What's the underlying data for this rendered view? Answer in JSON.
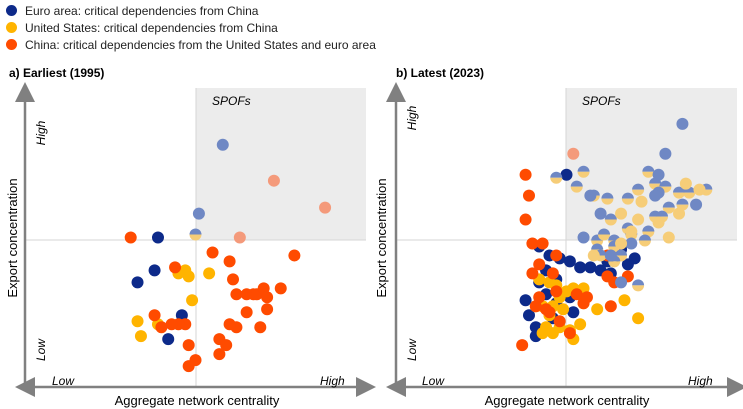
{
  "legend": [
    {
      "label": "Euro area: critical dependencies from China",
      "color": "#0d2a8a"
    },
    {
      "label": "United States: critical dependencies from China",
      "color": "#ffb400"
    },
    {
      "label": "China: critical dependencies from the United States and euro area",
      "color": "#ff4b00"
    }
  ],
  "chart_data": [
    {
      "type": "scatter",
      "title": "a) Earliest (1995)",
      "xlabel": "Aggregate network centrality",
      "ylabel": "Export concentration",
      "x_low_label": "Low",
      "x_high_label": "High",
      "y_low_label": "Low",
      "y_high_label": "High",
      "quadrant_label": "SPOFs",
      "xlim": [
        0,
        100
      ],
      "ylim": [
        0,
        100
      ],
      "threshold": {
        "x": 50,
        "y": 50
      },
      "series": [
        {
          "name": "Euro area: critical dependencies from China",
          "color": "#0d2a8a",
          "points": [
            [
              39,
              50
            ],
            [
              38,
              39
            ],
            [
              33,
              35
            ],
            [
              46,
              24
            ],
            [
              42,
              16
            ]
          ]
        },
        {
          "name": "United States: critical dependencies from China",
          "color": "#ffb400",
          "points": [
            [
              47,
              39
            ],
            [
              48,
              37
            ],
            [
              45,
              38
            ],
            [
              54,
              38
            ],
            [
              49,
              29
            ],
            [
              33,
              22
            ],
            [
              39,
              21
            ],
            [
              34,
              17
            ]
          ]
        },
        {
          "name": "China: critical dependencies from the United States and euro area",
          "color": "#ff4b00",
          "points": [
            [
              31,
              50
            ],
            [
              44,
              40
            ],
            [
              55,
              45
            ],
            [
              60,
              42
            ],
            [
              61,
              36
            ],
            [
              62,
              31
            ],
            [
              65,
              31
            ],
            [
              67,
              31
            ],
            [
              68,
              31
            ],
            [
              70,
              33
            ],
            [
              71,
              30
            ],
            [
              75,
              33
            ],
            [
              79,
              44
            ],
            [
              65,
              25
            ],
            [
              71,
              26
            ],
            [
              69,
              20
            ],
            [
              62,
              20
            ],
            [
              60,
              21
            ],
            [
              57,
              16
            ],
            [
              59,
              14
            ],
            [
              57,
              11
            ],
            [
              48,
              14
            ],
            [
              47,
              21
            ],
            [
              48,
              7
            ],
            [
              50,
              9
            ],
            [
              45,
              21
            ],
            [
              40,
              20
            ],
            [
              38,
              24
            ],
            [
              43,
              21
            ]
          ]
        },
        {
          "name": "Both",
          "split": [
            "#6f88c4",
            "#f6cd78"
          ],
          "points": [
            [
              50,
              51
            ]
          ]
        },
        {
          "name": "Faded Euro area",
          "color": "#6f88c4",
          "points": [
            [
              58,
              81
            ],
            [
              51,
              58
            ]
          ]
        },
        {
          "name": "Faded China",
          "color": "#f49a7b",
          "points": [
            [
              73,
              69
            ],
            [
              88,
              60
            ],
            [
              63,
              50
            ]
          ]
        }
      ]
    },
    {
      "type": "scatter",
      "title": "b) Latest (2023)",
      "xlabel": "Aggregate network centrality",
      "ylabel": "Export concentration",
      "x_low_label": "Low",
      "x_high_label": "High",
      "y_low_label": "Low",
      "y_high_label": "High",
      "quadrant_label": "SPOFs",
      "xlim": [
        0,
        100
      ],
      "ylim": [
        0,
        100
      ],
      "threshold": {
        "x": 50,
        "y": 50
      },
      "series": [
        {
          "name": "Euro area: critical dependencies from China",
          "color": "#0d2a8a",
          "points": [
            [
              50,
              71
            ],
            [
              42,
              47
            ],
            [
              45,
              44
            ],
            [
              48,
              43
            ],
            [
              44,
              39
            ],
            [
              42,
              35
            ],
            [
              47,
              36
            ],
            [
              51,
              42
            ],
            [
              54,
              40
            ],
            [
              57,
              40
            ],
            [
              66,
              46
            ],
            [
              65,
              44
            ],
            [
              44,
              31
            ],
            [
              47,
              28
            ],
            [
              51,
              30
            ],
            [
              60,
              39
            ],
            [
              62,
              42
            ],
            [
              70,
              43
            ],
            [
              68,
              41
            ],
            [
              63,
              38
            ],
            [
              46,
              23
            ],
            [
              52,
              25
            ],
            [
              39,
              24
            ],
            [
              41,
              20
            ],
            [
              38,
              29
            ],
            [
              41,
              17
            ]
          ]
        },
        {
          "name": "United States: critical dependencies from China",
          "color": "#ffb400",
          "points": [
            [
              42,
              36
            ],
            [
              45,
              35
            ],
            [
              47,
              34
            ],
            [
              48,
              30
            ],
            [
              50,
              32
            ],
            [
              52,
              33
            ],
            [
              55,
              33
            ],
            [
              46,
              27
            ],
            [
              49,
              26
            ],
            [
              43,
              27
            ],
            [
              48,
              20
            ],
            [
              51,
              19
            ],
            [
              55,
              28
            ],
            [
              54,
              21
            ],
            [
              59,
              26
            ],
            [
              67,
              29
            ],
            [
              43,
              18
            ],
            [
              46,
              18
            ],
            [
              44,
              20
            ],
            [
              52,
              16
            ],
            [
              71,
              23
            ],
            [
              41,
              27
            ],
            [
              45,
              24
            ]
          ]
        },
        {
          "name": "China: critical dependencies from the United States and euro area",
          "color": "#ff4b00",
          "points": [
            [
              38,
              56
            ],
            [
              39,
              64
            ],
            [
              40,
              48
            ],
            [
              43,
              48
            ],
            [
              46,
              38
            ],
            [
              47,
              44
            ],
            [
              40,
              38
            ],
            [
              42,
              41
            ],
            [
              62,
              44
            ],
            [
              64,
              35
            ],
            [
              63,
              27
            ],
            [
              55,
              28
            ],
            [
              45,
              25
            ],
            [
              48,
              22
            ],
            [
              53,
              31
            ],
            [
              56,
              30
            ],
            [
              42,
              30
            ],
            [
              37,
              14
            ],
            [
              44,
              26
            ],
            [
              51,
              18
            ],
            [
              41,
              27
            ],
            [
              47,
              32
            ],
            [
              62,
              37
            ],
            [
              68,
              37
            ],
            [
              38,
              71
            ]
          ]
        },
        {
          "name": "Both",
          "split": [
            "#6f88c4",
            "#f6cd78"
          ],
          "points": [
            [
              58,
              64
            ],
            [
              62,
              63
            ],
            [
              68,
              63
            ],
            [
              71,
              66
            ],
            [
              74,
              72
            ],
            [
              83,
              65
            ],
            [
              86,
              65
            ],
            [
              91,
              66
            ],
            [
              84,
              61
            ],
            [
              80,
              60
            ],
            [
              76,
              57
            ],
            [
              78,
              57
            ],
            [
              76,
              68
            ],
            [
              79,
              67
            ],
            [
              63,
              56
            ],
            [
              68,
              53
            ],
            [
              69,
              51
            ],
            [
              59,
              49
            ],
            [
              61,
              51
            ],
            [
              64,
              49
            ],
            [
              74,
              52
            ],
            [
              73,
              49
            ],
            [
              64,
              47
            ],
            [
              59,
              46
            ],
            [
              60,
              44
            ],
            [
              71,
              34
            ],
            [
              53,
              67
            ],
            [
              47,
              70
            ],
            [
              66,
              44
            ],
            [
              55,
              72
            ],
            [
              64,
              42
            ]
          ]
        },
        {
          "name": "Faded Euro area",
          "color": "#6f88c4",
          "points": [
            [
              84,
              88
            ],
            [
              79,
              78
            ],
            [
              77,
              65
            ],
            [
              77,
              71
            ],
            [
              88,
              61
            ],
            [
              55,
              50
            ],
            [
              63,
              44
            ],
            [
              66,
              35
            ],
            [
              57,
              64
            ],
            [
              60,
              58
            ],
            [
              76,
              64
            ],
            [
              69,
              48
            ]
          ]
        },
        {
          "name": "Faded United States",
          "color": "#f6cd78",
          "points": [
            [
              85,
              68
            ],
            [
              89,
              66
            ],
            [
              71,
              56
            ],
            [
              66,
              58
            ],
            [
              69,
              52
            ],
            [
              83,
              58
            ],
            [
              72,
              62
            ],
            [
              80,
              50
            ],
            [
              77,
              55
            ],
            [
              58,
              44
            ],
            [
              66,
              48
            ]
          ]
        },
        {
          "name": "Faded China",
          "color": "#f49a7b",
          "points": [
            [
              52,
              78
            ]
          ]
        }
      ]
    }
  ]
}
